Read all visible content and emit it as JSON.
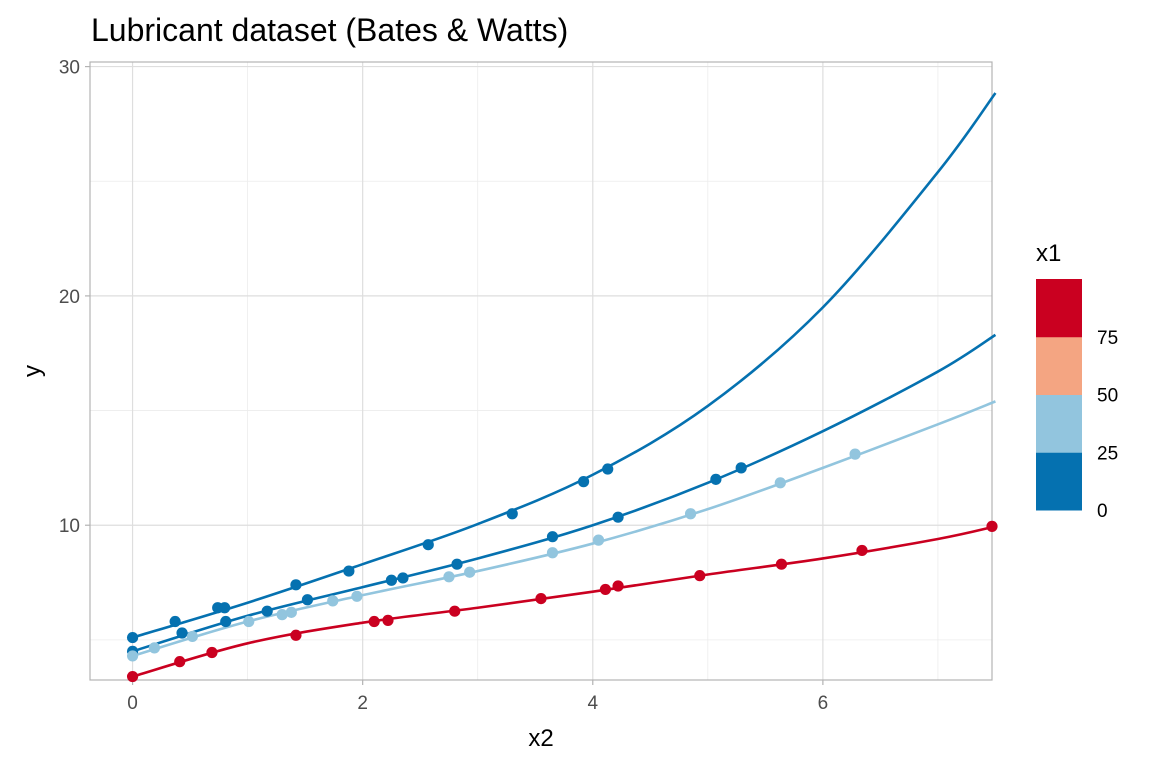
{
  "chart_data": {
    "type": "scatter",
    "title": "Lubricant dataset (Bates & Watts)",
    "xlabel": "x2",
    "ylabel": "y",
    "xlim": [
      -0.37,
      7.47
    ],
    "ylim": [
      3.25,
      30.2
    ],
    "x_ticks": [
      0,
      2,
      4,
      6
    ],
    "y_ticks": [
      10,
      20,
      30
    ],
    "grid": true,
    "legend": {
      "title": "x1",
      "position": "right",
      "colors": [
        "#0571b0",
        "#92c5de",
        "#f4a582",
        "#ca0020"
      ],
      "labels": [
        "0",
        "25",
        "50",
        "75"
      ]
    },
    "series": [
      {
        "color": "#0571b0",
        "points": [
          [
            0,
            5.1
          ],
          [
            0.37,
            5.8
          ],
          [
            0.74,
            6.4
          ],
          [
            0.8,
            6.4
          ],
          [
            1.42,
            7.4
          ],
          [
            1.88,
            8.0
          ],
          [
            2.57,
            9.15
          ],
          [
            3.3,
            10.5
          ],
          [
            3.92,
            11.9
          ],
          [
            4.13,
            12.45
          ]
        ],
        "curve": [
          [
            0,
            5.1
          ],
          [
            1,
            6.62
          ],
          [
            2,
            8.3
          ],
          [
            3,
            10.05
          ],
          [
            4,
            12.2
          ],
          [
            5,
            15.2
          ],
          [
            6,
            19.5
          ],
          [
            7,
            25.4
          ],
          [
            7.5,
            28.85
          ]
        ]
      },
      {
        "color": "#0571b0",
        "points": [
          [
            0,
            4.5
          ],
          [
            0.43,
            5.3
          ],
          [
            0.81,
            5.8
          ],
          [
            1.17,
            6.25
          ],
          [
            1.52,
            6.75
          ],
          [
            2.25,
            7.6
          ],
          [
            2.35,
            7.7
          ],
          [
            2.82,
            8.3
          ],
          [
            3.65,
            9.5
          ],
          [
            4.22,
            10.35
          ],
          [
            5.07,
            12.0
          ],
          [
            5.29,
            12.5
          ]
        ],
        "curve": [
          [
            0,
            4.5
          ],
          [
            1,
            6.05
          ],
          [
            2,
            7.3
          ],
          [
            3,
            8.55
          ],
          [
            4,
            10.0
          ],
          [
            5,
            11.85
          ],
          [
            6,
            14.1
          ],
          [
            7,
            16.7
          ],
          [
            7.5,
            18.3
          ]
        ]
      },
      {
        "color": "#92c5de",
        "points": [
          [
            0,
            4.3
          ],
          [
            0.19,
            4.65
          ],
          [
            0.52,
            5.15
          ],
          [
            1.01,
            5.8
          ],
          [
            1.3,
            6.1
          ],
          [
            1.38,
            6.2
          ],
          [
            1.74,
            6.7
          ],
          [
            1.95,
            6.9
          ],
          [
            2.75,
            7.75
          ],
          [
            2.93,
            7.95
          ],
          [
            3.65,
            8.8
          ],
          [
            4.05,
            9.35
          ],
          [
            4.85,
            10.5
          ],
          [
            5.63,
            11.85
          ],
          [
            6.28,
            13.1
          ]
        ],
        "curve": [
          [
            0,
            4.3
          ],
          [
            1,
            5.8
          ],
          [
            2,
            6.95
          ],
          [
            3,
            8.0
          ],
          [
            4,
            9.2
          ],
          [
            5,
            10.7
          ],
          [
            6,
            12.5
          ],
          [
            7,
            14.4
          ],
          [
            7.5,
            15.4
          ]
        ]
      },
      {
        "color": "#ca0020",
        "points": [
          [
            0,
            3.4
          ],
          [
            0.41,
            4.05
          ],
          [
            0.69,
            4.45
          ],
          [
            1.42,
            5.2
          ],
          [
            2.1,
            5.8
          ],
          [
            2.22,
            5.85
          ],
          [
            2.8,
            6.25
          ],
          [
            3.55,
            6.8
          ],
          [
            4.11,
            7.2
          ],
          [
            4.22,
            7.35
          ],
          [
            4.93,
            7.8
          ],
          [
            5.64,
            8.3
          ],
          [
            6.34,
            8.9
          ],
          [
            7.47,
            9.95
          ]
        ],
        "curve": [
          [
            0,
            3.4
          ],
          [
            1,
            4.85
          ],
          [
            2,
            5.75
          ],
          [
            3,
            6.4
          ],
          [
            4,
            7.1
          ],
          [
            5,
            7.85
          ],
          [
            6,
            8.55
          ],
          [
            7,
            9.4
          ],
          [
            7.5,
            9.95
          ]
        ]
      }
    ]
  }
}
